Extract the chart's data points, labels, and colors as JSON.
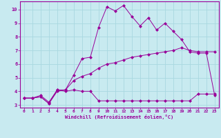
{
  "xlabel": "Windchill (Refroidissement éolien,°C)",
  "bg_color": "#c8eaf0",
  "grid_color": "#a8d8e0",
  "line_color": "#990099",
  "spine_color": "#990099",
  "xlim": [
    -0.5,
    23.5
  ],
  "ylim": [
    2.8,
    10.6
  ],
  "xticks": [
    0,
    1,
    2,
    3,
    4,
    5,
    6,
    7,
    8,
    9,
    10,
    11,
    12,
    13,
    14,
    15,
    16,
    17,
    18,
    19,
    20,
    21,
    22,
    23
  ],
  "yticks": [
    3,
    4,
    5,
    6,
    7,
    8,
    9,
    10
  ],
  "series1_x": [
    0,
    1,
    2,
    3,
    4,
    5,
    6,
    7,
    8,
    9,
    10,
    11,
    12,
    13,
    14,
    15,
    16,
    17,
    18,
    19,
    20,
    21,
    22,
    23
  ],
  "series1_y": [
    3.5,
    3.5,
    3.6,
    3.1,
    4.1,
    4.0,
    4.1,
    4.0,
    4.0,
    3.3,
    3.3,
    3.3,
    3.3,
    3.3,
    3.3,
    3.3,
    3.3,
    3.3,
    3.3,
    3.3,
    3.3,
    3.8,
    3.8,
    3.8
  ],
  "series2_x": [
    0,
    1,
    2,
    3,
    4,
    5,
    6,
    7,
    8,
    9,
    10,
    11,
    12,
    13,
    14,
    15,
    16,
    17,
    18,
    19,
    20,
    21,
    22,
    23
  ],
  "series2_y": [
    3.5,
    3.5,
    3.7,
    3.2,
    4.1,
    4.1,
    5.2,
    6.4,
    6.5,
    8.7,
    10.2,
    9.9,
    10.3,
    9.5,
    8.8,
    9.4,
    8.5,
    9.0,
    8.4,
    7.8,
    6.9,
    6.8,
    6.8,
    3.7
  ],
  "series3_x": [
    0,
    1,
    2,
    3,
    4,
    5,
    6,
    7,
    8,
    9,
    10,
    11,
    12,
    13,
    14,
    15,
    16,
    17,
    18,
    19,
    20,
    21,
    22,
    23
  ],
  "series3_y": [
    3.5,
    3.5,
    3.6,
    3.1,
    4.0,
    4.1,
    4.8,
    5.1,
    5.3,
    5.7,
    6.0,
    6.1,
    6.3,
    6.5,
    6.6,
    6.7,
    6.8,
    6.9,
    7.0,
    7.2,
    7.0,
    6.9,
    6.9,
    6.9
  ],
  "tick_fontsize": 4.5,
  "xlabel_fontsize": 5.0
}
